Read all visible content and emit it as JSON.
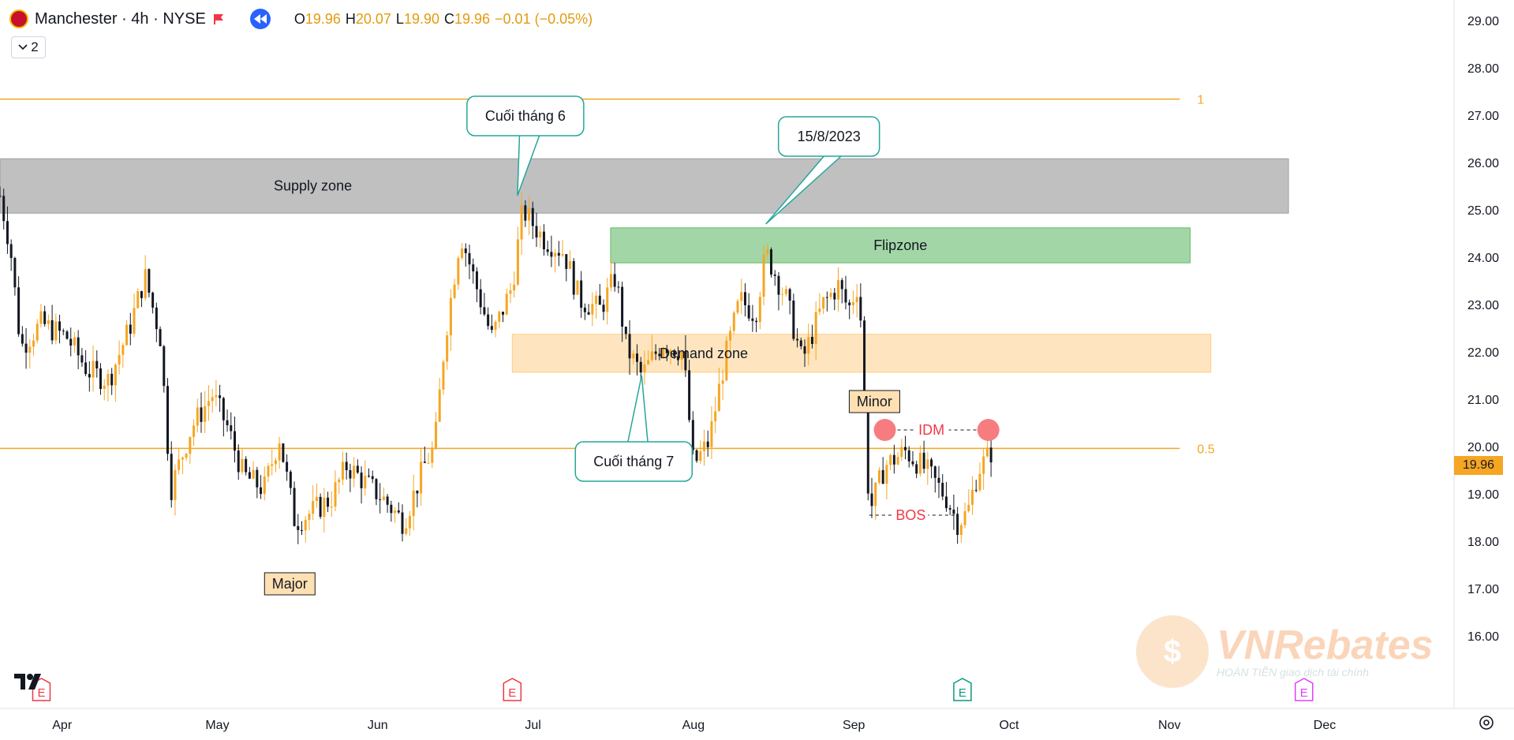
{
  "header": {
    "symbol": "Manchester",
    "interval": "4h",
    "exchange": "NYSE",
    "sep": "·",
    "open_label": "O",
    "open": "19.96",
    "high_label": "H",
    "high": "20.07",
    "low_label": "L",
    "low": "19.90",
    "close_label": "C",
    "close": "19.96",
    "change": "−0.01 (−0.05%)",
    "indicator_count": "2"
  },
  "colors": {
    "up": "#f5a623",
    "down": "#131722",
    "supply_fill": "#9e9e9e",
    "flip_fill": "#66bb6a",
    "demand_fill": "#ffcc80",
    "fib_line": "#f5a623",
    "label_red": "#f23645",
    "accent": "#2962ff"
  },
  "icons": [
    "club-logo-icon",
    "flag-icon",
    "replay-icon",
    "chevron-down-icon",
    "settings-gear-icon",
    "tradingview-logo-icon",
    "earnings-icon"
  ],
  "last_price": "19.96",
  "chart_data": {
    "type": "candlestick",
    "ylim": [
      15.4,
      29.2
    ],
    "y_ticks": [
      "29.00",
      "28.00",
      "27.00",
      "26.00",
      "25.00",
      "24.00",
      "23.00",
      "22.00",
      "21.00",
      "20.00",
      "19.00",
      "18.00",
      "17.00",
      "16.00"
    ],
    "x_ticks": [
      {
        "label": "Apr",
        "date": "2023-04-01"
      },
      {
        "label": "May",
        "date": "2023-05-01"
      },
      {
        "label": "Jun",
        "date": "2023-06-01"
      },
      {
        "label": "Jul",
        "date": "2023-07-01"
      },
      {
        "label": "Aug",
        "date": "2023-08-01"
      },
      {
        "label": "Sep",
        "date": "2023-09-01"
      },
      {
        "label": "Oct",
        "date": "2023-10-01"
      },
      {
        "label": "Nov",
        "date": "2023-11-01"
      },
      {
        "label": "Dec",
        "date": "2023-12-01"
      }
    ],
    "x_range": [
      "2023-03-20",
      "2023-12-26"
    ],
    "candle_path": [
      [
        "2023-03-20",
        25.3
      ],
      [
        "2023-03-22",
        24.2
      ],
      [
        "2023-03-24",
        22.1
      ],
      [
        "2023-03-28",
        22.6
      ],
      [
        "2023-04-02",
        22.3
      ],
      [
        "2023-04-06",
        21.6
      ],
      [
        "2023-04-10",
        21.4
      ],
      [
        "2023-04-14",
        22.5
      ],
      [
        "2023-04-17",
        23.6
      ],
      [
        "2023-04-20",
        22.3
      ],
      [
        "2023-04-22",
        19.1
      ],
      [
        "2023-04-26",
        20.4
      ],
      [
        "2023-04-30",
        21.1
      ],
      [
        "2023-05-03",
        20.4
      ],
      [
        "2023-05-06",
        19.4
      ],
      [
        "2023-05-10",
        19.1
      ],
      [
        "2023-05-13",
        20.2
      ],
      [
        "2023-05-16",
        18.4
      ],
      [
        "2023-05-19",
        18.6
      ],
      [
        "2023-05-23",
        18.9
      ],
      [
        "2023-05-26",
        19.6
      ],
      [
        "2023-05-30",
        19.2
      ],
      [
        "2023-06-02",
        18.9
      ],
      [
        "2023-06-06",
        18.4
      ],
      [
        "2023-06-10",
        19.6
      ],
      [
        "2023-06-12",
        20.0
      ],
      [
        "2023-06-14",
        22.3
      ],
      [
        "2023-06-17",
        24.5
      ],
      [
        "2023-06-20",
        23.4
      ],
      [
        "2023-06-23",
        22.3
      ],
      [
        "2023-06-27",
        23.4
      ],
      [
        "2023-06-29",
        25.0
      ],
      [
        "2023-07-03",
        24.4
      ],
      [
        "2023-07-07",
        24.1
      ],
      [
        "2023-07-10",
        23.1
      ],
      [
        "2023-07-14",
        22.9
      ],
      [
        "2023-07-17",
        23.6
      ],
      [
        "2023-07-19",
        22.1
      ],
      [
        "2023-07-22",
        21.5
      ],
      [
        "2023-07-26",
        22.2
      ],
      [
        "2023-07-30",
        22.0
      ],
      [
        "2023-08-01",
        19.6
      ],
      [
        "2023-08-04",
        20.1
      ],
      [
        "2023-08-07",
        21.8
      ],
      [
        "2023-08-10",
        23.1
      ],
      [
        "2023-08-13",
        22.8
      ],
      [
        "2023-08-15",
        24.1
      ],
      [
        "2023-08-19",
        23.1
      ],
      [
        "2023-08-22",
        21.8
      ],
      [
        "2023-08-26",
        23.0
      ],
      [
        "2023-08-29",
        23.4
      ],
      [
        "2023-08-31",
        22.9
      ],
      [
        "2023-09-02",
        23.5
      ],
      [
        "2023-09-04",
        18.6
      ],
      [
        "2023-09-07",
        19.6
      ],
      [
        "2023-09-11",
        19.9
      ],
      [
        "2023-09-15",
        19.5
      ],
      [
        "2023-09-19",
        18.9
      ],
      [
        "2023-09-21",
        18.4
      ],
      [
        "2023-09-23",
        18.6
      ],
      [
        "2023-09-25",
        19.5
      ],
      [
        "2023-09-27",
        19.8
      ],
      [
        "2023-09-28",
        19.96
      ]
    ],
    "zones": [
      {
        "name": "Supply zone",
        "label": "Supply zone",
        "from": "2023-03-20",
        "to": "2023-11-24",
        "low": 24.93,
        "high": 26.08
      },
      {
        "name": "Flipzone",
        "label": "Flipzone",
        "from": "2023-07-16",
        "to": "2023-11-05",
        "low": 23.88,
        "high": 24.62
      },
      {
        "name": "Demand zone",
        "label": "Demand zone",
        "from": "2023-06-27",
        "to": "2023-11-09",
        "low": 21.57,
        "high": 22.37
      }
    ],
    "fib_levels": [
      {
        "label": "1",
        "price": 27.34,
        "from": "2023-03-20",
        "to": "2023-11-03"
      },
      {
        "label": "0.5",
        "price": 19.96,
        "from": "2023-03-20",
        "to": "2023-11-03"
      }
    ],
    "callouts": [
      {
        "text": "Cuối tháng 6",
        "date": "2023-06-28",
        "price": 25.3
      },
      {
        "text": "15/8/2023",
        "date": "2023-08-15",
        "price": 24.7
      },
      {
        "text": "Cuối tháng 7",
        "date": "2023-07-22",
        "price": 21.5
      }
    ],
    "labels": [
      {
        "text": "Major",
        "date": "2023-05-15",
        "price": 17.1
      },
      {
        "text": "Minor",
        "date": "2023-09-05",
        "price": 20.95
      },
      {
        "text": "IDM",
        "date": "2023-09-16",
        "price": 20.35
      },
      {
        "text": "BOS",
        "date": "2023-09-12",
        "price": 18.55
      }
    ],
    "event_markers": [
      {
        "text": "E",
        "date": "2023-03-28",
        "type": "earnings"
      },
      {
        "text": "E",
        "date": "2023-06-27",
        "type": "earnings"
      },
      {
        "text": "E",
        "date": "2023-09-22",
        "type": "earnings"
      },
      {
        "text": "E",
        "date": "2023-11-27",
        "type": "earnings"
      }
    ]
  },
  "watermark": {
    "brand": "VNRebates",
    "tagline": "giao dịch tài chính",
    "badge": "HOÀN TIỀN"
  }
}
